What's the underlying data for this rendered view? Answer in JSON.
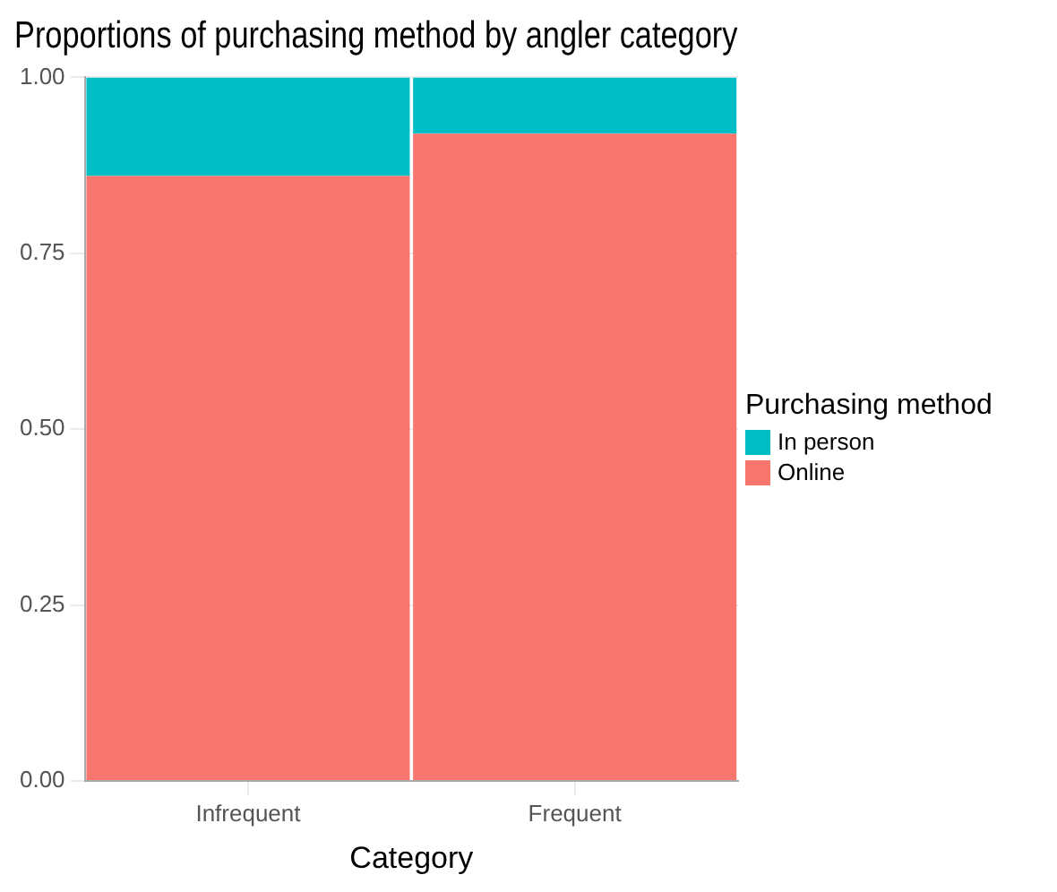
{
  "chart_data": {
    "type": "bar",
    "title": "Proportions of purchasing method by angler category",
    "xlabel": "Category",
    "legend_title": "Purchasing method",
    "categories": [
      "Infrequent",
      "Frequent"
    ],
    "stacked": true,
    "series": [
      {
        "name": "Online",
        "color": "#f8766d",
        "values": [
          0.86,
          0.92
        ]
      },
      {
        "name": "In person",
        "color": "#00bfc4",
        "values": [
          0.14,
          0.08
        ]
      }
    ],
    "ylim": [
      0,
      1
    ],
    "yticks": [
      {
        "value": 0,
        "label": "0.00"
      },
      {
        "value": 0.25,
        "label": "0.25"
      },
      {
        "value": 0.5,
        "label": "0.50"
      },
      {
        "value": 0.75,
        "label": "0.75"
      },
      {
        "value": 1,
        "label": "1.00"
      }
    ],
    "grid": true,
    "legend": "right"
  }
}
